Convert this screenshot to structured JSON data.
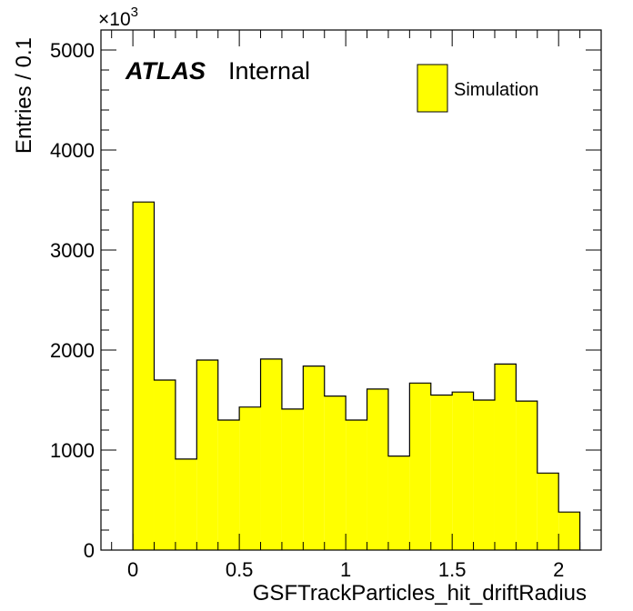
{
  "chart_data": {
    "type": "bar",
    "xlabel": "GSFTrackParticles_hit_driftRadius",
    "ylabel": "Entries / 0.1",
    "y_multiplier_label": "×10",
    "y_multiplier_exponent": "3",
    "xlim": [
      -0.15,
      2.2
    ],
    "ylim": [
      0,
      5200
    ],
    "x_ticks": [
      0,
      0.5,
      1,
      1.5,
      2
    ],
    "x_tick_labels": [
      "0",
      "0.5",
      "1",
      "1.5",
      "2"
    ],
    "y_ticks": [
      0,
      1000,
      2000,
      3000,
      4000,
      5000
    ],
    "y_tick_labels": [
      "0",
      "1000",
      "2000",
      "3000",
      "4000",
      "5000"
    ],
    "bin_width": 0.1,
    "bin_edges": [
      0,
      0.1,
      0.2,
      0.3,
      0.4,
      0.5,
      0.6,
      0.7,
      0.8,
      0.9,
      1.0,
      1.1,
      1.2,
      1.3,
      1.4,
      1.5,
      1.6,
      1.7,
      1.8,
      1.9,
      2.0,
      2.1
    ],
    "values": [
      3480,
      1700,
      910,
      1900,
      1300,
      1430,
      1910,
      1410,
      1840,
      1540,
      1300,
      1610,
      940,
      1670,
      1550,
      1580,
      1500,
      1860,
      1490,
      770,
      380
    ],
    "series": [
      {
        "name": "Simulation",
        "color": "#ffff00",
        "edge": "#000000"
      }
    ],
    "legend_placement": "top-right",
    "grid": false,
    "labels": {
      "atlas": "ATLAS",
      "status": "Internal"
    }
  }
}
